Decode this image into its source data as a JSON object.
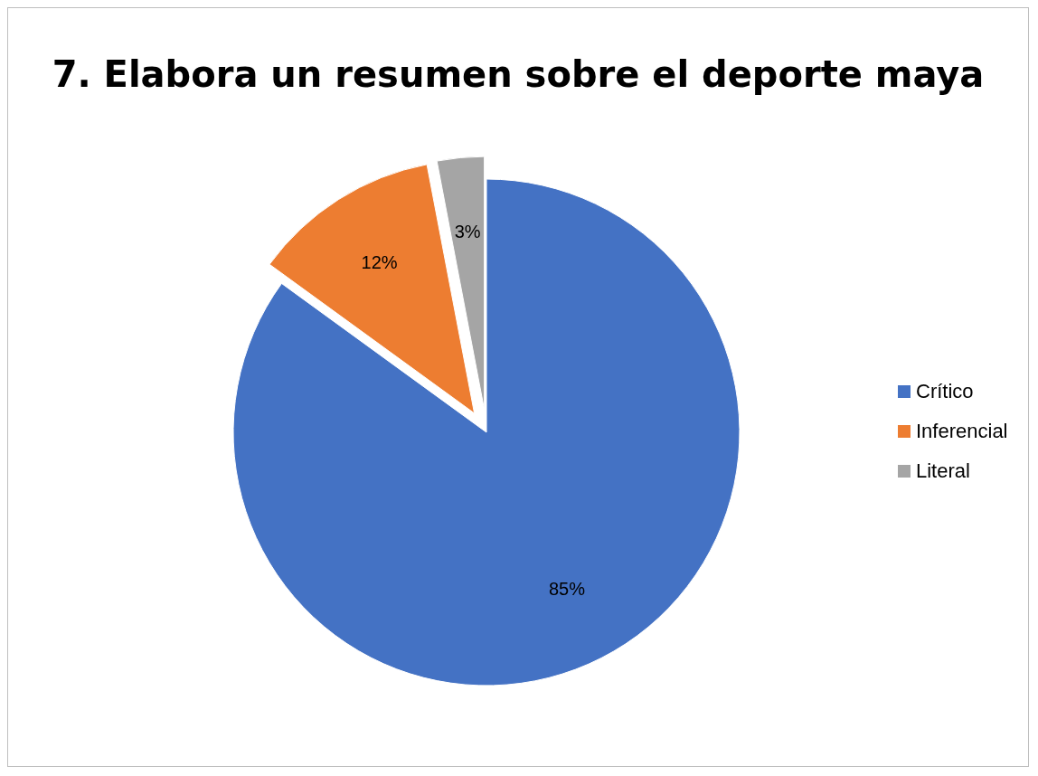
{
  "chart_data": {
    "type": "pie",
    "title": "7. Elabora un resumen sobre el deporte maya",
    "categories": [
      "Crítico",
      "Inferencial",
      "Literal"
    ],
    "values": [
      85,
      12,
      3
    ],
    "colors": [
      "#4472c4",
      "#ed7d31",
      "#a5a5a5"
    ],
    "value_labels": [
      "85%",
      "12%",
      "3%"
    ],
    "legend": "right"
  }
}
